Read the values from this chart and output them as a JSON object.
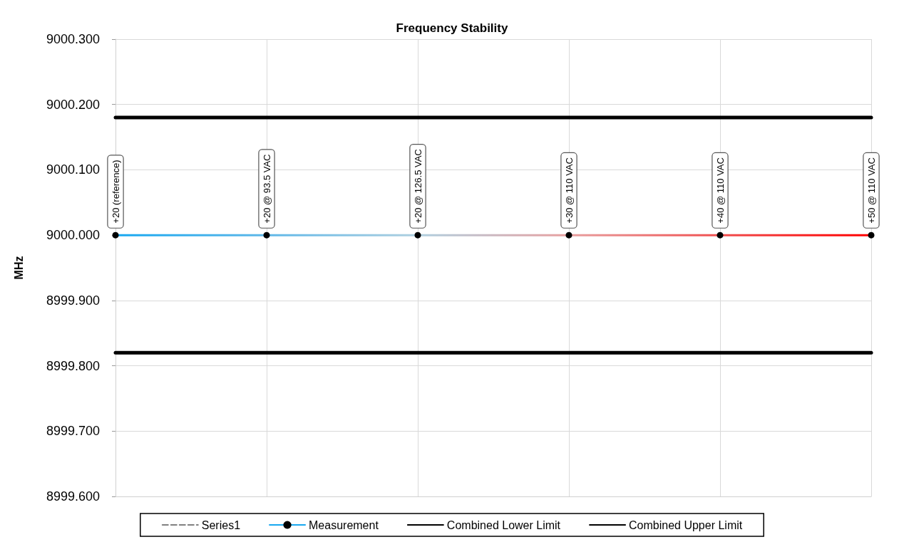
{
  "chart_data": {
    "type": "line",
    "title": "Frequency Stability",
    "ylabel": "MHz",
    "categories": [
      "+20 (reference)",
      "+20 @ 93.5 VAC",
      "+20 @ 126.5 VAC",
      "+30 @ 110 VAC",
      "+40 @ 110 VAC",
      "+50 @ 110 VAC"
    ],
    "series": [
      {
        "name": "Series1",
        "color": "#808080",
        "line_style": "dashed",
        "marker": "none",
        "values": [
          null,
          null,
          null,
          null,
          null,
          null
        ]
      },
      {
        "name": "Measurement",
        "color": "#000000",
        "colors": [
          "#18a8f0",
          "#60b8e8",
          "#b0d0e0",
          "#e8a0a0",
          "#f05050",
          "#ff0000"
        ],
        "marker": "circle",
        "line_style": "solid",
        "values": [
          9000.0,
          9000.0,
          9000.0,
          9000.0,
          9000.0,
          9000.0
        ]
      },
      {
        "name": "Combined Lower Limit",
        "color": "#000000",
        "marker": "none",
        "line_style": "solid",
        "values": [
          8999.82,
          8999.82,
          8999.82,
          8999.82,
          8999.82,
          8999.82
        ]
      },
      {
        "name": "Combined Upper Limit",
        "color": "#000000",
        "marker": "none",
        "line_style": "solid",
        "values": [
          9000.18,
          9000.18,
          9000.18,
          9000.18,
          9000.18,
          9000.18
        ]
      }
    ],
    "ylim": [
      8999.6,
      9000.3
    ],
    "yticks": [
      {
        "value": 8999.6,
        "label": "8999.600"
      },
      {
        "value": 8999.7,
        "label": "8999.700"
      },
      {
        "value": 8999.8,
        "label": "8999.800"
      },
      {
        "value": 8999.9,
        "label": "8999.900"
      },
      {
        "value": 9000.0,
        "label": "9000.000"
      },
      {
        "value": 9000.1,
        "label": "9000.100"
      },
      {
        "value": 9000.2,
        "label": "9000.200"
      },
      {
        "value": 9000.3,
        "label": "9000.300"
      }
    ],
    "grid": true,
    "legend": "bottom",
    "tick_labels": "y"
  }
}
